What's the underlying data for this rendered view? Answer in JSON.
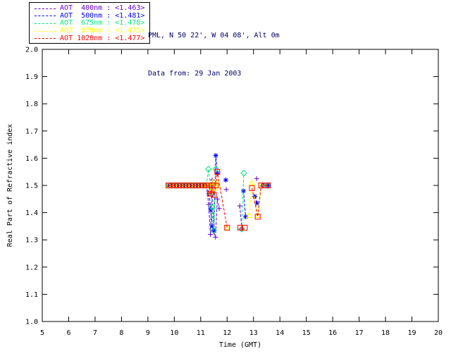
{
  "header": {
    "line1": "PML, N 50 22', W 04 08', Alt 0m",
    "line2": "Data from: 29 Jan 2003",
    "color": "#000066"
  },
  "legend": {
    "entries": [
      {
        "label": "AOT  400nm : <1.463>",
        "color": "#6600cc"
      },
      {
        "label": "AOT  500nm : <1.481>",
        "color": "#0000ff"
      },
      {
        "label": "AOT  675nm : <1.478>",
        "color": "#00e87c"
      },
      {
        "label": "AOT  870nm : <1.475>",
        "color": "#ffff00"
      },
      {
        "label": "AOT 1020nm : <1.477>",
        "color": "#ff0000"
      }
    ]
  },
  "chart_data": {
    "type": "line",
    "title": "",
    "xlabel": "Time (GMT)",
    "ylabel": "Real Part of Refractive index",
    "xlim": [
      5,
      20
    ],
    "ylim": [
      1.0,
      2.0
    ],
    "xtick_step": 1,
    "ytick_step": 0.1,
    "grid": false,
    "frame": true,
    "legend_position": "top-left-outside",
    "line_style": "dashed",
    "series": [
      {
        "name": "AOT 400nm",
        "mean_label": "<1.463>",
        "color": "#6600cc",
        "marker": "plus",
        "segments": [
          [
            [
              9.78,
              1.5
            ],
            [
              9.9,
              1.5
            ],
            [
              10.02,
              1.5
            ],
            [
              10.14,
              1.5
            ],
            [
              10.26,
              1.5
            ],
            [
              10.38,
              1.5
            ],
            [
              10.5,
              1.5
            ],
            [
              10.62,
              1.5
            ],
            [
              10.74,
              1.5
            ],
            [
              10.86,
              1.5
            ],
            [
              10.98,
              1.5
            ],
            [
              11.1,
              1.5
            ],
            [
              11.22,
              1.5
            ],
            [
              11.3,
              1.43
            ],
            [
              11.37,
              1.32
            ],
            [
              11.43,
              1.52
            ],
            [
              11.49,
              1.33
            ],
            [
              11.56,
              1.31
            ],
            [
              11.63,
              1.45
            ],
            [
              11.7,
              1.415
            ]
          ],
          [
            [
              11.97,
              1.485
            ]
          ],
          [
            [
              12.48,
              1.425
            ],
            [
              12.56,
              1.34
            ]
          ],
          [
            [
              13.12,
              1.525
            ]
          ]
        ]
      },
      {
        "name": "AOT 500nm",
        "mean_label": "<1.481>",
        "color": "#0000ff",
        "marker": "asterisk",
        "segments": [
          [
            [
              9.78,
              1.5
            ],
            [
              9.9,
              1.5
            ],
            [
              10.02,
              1.5
            ],
            [
              10.14,
              1.5
            ],
            [
              10.26,
              1.5
            ],
            [
              10.38,
              1.5
            ],
            [
              10.5,
              1.5
            ],
            [
              10.62,
              1.5
            ],
            [
              10.74,
              1.5
            ],
            [
              10.86,
              1.5
            ],
            [
              10.98,
              1.5
            ],
            [
              11.1,
              1.5
            ],
            [
              11.22,
              1.5
            ],
            [
              11.31,
              1.47
            ],
            [
              11.38,
              1.41
            ],
            [
              11.44,
              1.35
            ],
            [
              11.5,
              1.335
            ],
            [
              11.57,
              1.61
            ],
            [
              11.63,
              1.545
            ]
          ],
          [
            [
              11.95,
              1.52
            ]
          ],
          [
            [
              12.62,
              1.48
            ],
            [
              12.7,
              1.385
            ]
          ],
          [
            [
              13.05,
              1.46
            ],
            [
              13.13,
              1.435
            ]
          ],
          [
            [
              13.35,
              1.5
            ]
          ],
          [
            [
              13.56,
              1.5
            ]
          ]
        ]
      },
      {
        "name": "AOT 675nm",
        "mean_label": "<1.478>",
        "color": "#00e87c",
        "marker": "diamond",
        "segments": [
          [
            [
              9.78,
              1.5
            ],
            [
              9.9,
              1.5
            ],
            [
              10.02,
              1.5
            ],
            [
              10.14,
              1.5
            ],
            [
              10.26,
              1.5
            ],
            [
              10.38,
              1.5
            ],
            [
              10.5,
              1.5
            ],
            [
              10.62,
              1.5
            ],
            [
              10.74,
              1.5
            ],
            [
              10.86,
              1.5
            ],
            [
              10.98,
              1.5
            ],
            [
              11.1,
              1.5
            ],
            [
              11.22,
              1.5
            ],
            [
              11.29,
              1.56
            ],
            [
              11.36,
              1.5
            ],
            [
              11.42,
              1.42
            ],
            [
              11.49,
              1.335
            ],
            [
              11.57,
              1.56
            ]
          ],
          [
            [
              12.55,
              1.34
            ],
            [
              12.63,
              1.545
            ]
          ],
          [
            [
              13.35,
              1.5
            ]
          ],
          [
            [
              13.56,
              1.5
            ]
          ]
        ]
      },
      {
        "name": "AOT 870nm",
        "mean_label": "<1.475>",
        "color": "#ffff00",
        "marker": "triangle",
        "segments": [
          [
            [
              9.78,
              1.5
            ],
            [
              9.9,
              1.5
            ],
            [
              10.02,
              1.5
            ],
            [
              10.14,
              1.5
            ],
            [
              10.26,
              1.5
            ],
            [
              10.38,
              1.5
            ],
            [
              10.5,
              1.5
            ],
            [
              10.62,
              1.5
            ],
            [
              10.74,
              1.5
            ],
            [
              10.86,
              1.5
            ],
            [
              10.98,
              1.5
            ],
            [
              11.1,
              1.5
            ],
            [
              11.22,
              1.5
            ],
            [
              11.31,
              1.5
            ],
            [
              11.38,
              1.475
            ],
            [
              11.45,
              1.51
            ],
            [
              11.52,
              1.49
            ],
            [
              11.59,
              1.515
            ],
            [
              11.65,
              1.5
            ]
          ],
          [
            [
              11.99,
              1.345
            ]
          ],
          [
            [
              12.84,
              1.39
            ],
            [
              12.94,
              1.51
            ],
            [
              13.16,
              1.39
            ],
            [
              13.3,
              1.5
            ]
          ]
        ]
      },
      {
        "name": "AOT 1020nm",
        "mean_label": "<1.477>",
        "color": "#ff0000",
        "marker": "square",
        "segments": [
          [
            [
              9.78,
              1.5
            ],
            [
              9.9,
              1.5
            ],
            [
              10.02,
              1.5
            ],
            [
              10.14,
              1.5
            ],
            [
              10.26,
              1.5
            ],
            [
              10.38,
              1.5
            ],
            [
              10.5,
              1.5
            ],
            [
              10.62,
              1.5
            ],
            [
              10.74,
              1.5
            ],
            [
              10.86,
              1.5
            ],
            [
              10.98,
              1.5
            ],
            [
              11.1,
              1.5
            ],
            [
              11.22,
              1.5
            ],
            [
              11.31,
              1.5
            ],
            [
              11.38,
              1.47
            ],
            [
              11.44,
              1.5
            ],
            [
              11.5,
              1.465
            ],
            [
              11.57,
              1.5
            ],
            [
              11.63,
              1.55
            ],
            [
              12.0,
              1.345
            ]
          ],
          [
            [
              12.5,
              1.345
            ],
            [
              12.67,
              1.345
            ]
          ],
          [
            [
              12.94,
              1.49
            ],
            [
              13.16,
              1.385
            ],
            [
              13.29,
              1.5
            ],
            [
              13.42,
              1.5
            ],
            [
              13.55,
              1.5
            ]
          ]
        ]
      }
    ]
  }
}
